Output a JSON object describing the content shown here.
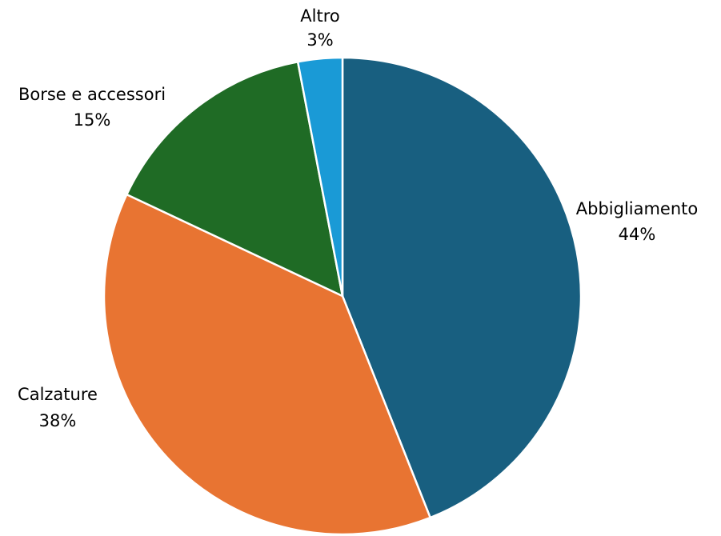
{
  "chart_data": {
    "type": "pie",
    "title": "",
    "slices": [
      {
        "label": "Abbigliamento",
        "value": 44,
        "value_label": "44%",
        "color": "#185f80"
      },
      {
        "label": "Calzature",
        "value": 38,
        "value_label": "38%",
        "color": "#e87432"
      },
      {
        "label": "Borse e accessori",
        "value": 15,
        "value_label": "15%",
        "color": "#1f6b25"
      },
      {
        "label": "Altro",
        "value": 3,
        "value_label": "3%",
        "color": "#1a9ad6"
      }
    ],
    "start": "top",
    "direction": "clockwise",
    "legend": "none",
    "slice_border_color": "#ffffff"
  }
}
